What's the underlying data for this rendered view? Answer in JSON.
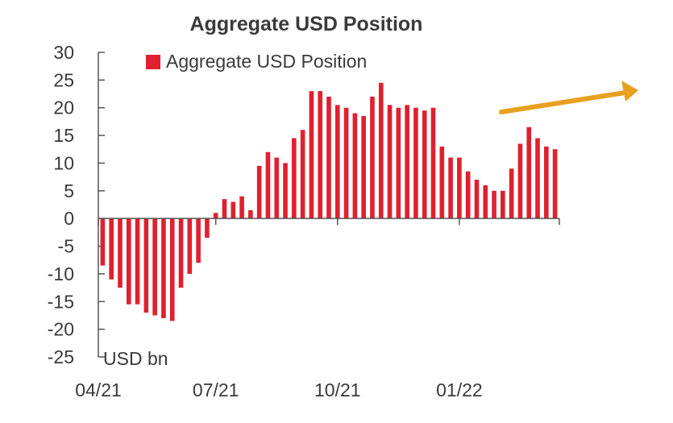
{
  "chart_data": {
    "type": "bar",
    "title": "Aggregate USD Position",
    "unit_label": "USD bn",
    "ylim": [
      -25,
      30
    ],
    "yticks": [
      30,
      25,
      20,
      15,
      10,
      5,
      0,
      -5,
      -10,
      -15,
      -20,
      -25
    ],
    "xtick_labels": [
      "04/21",
      "07/21",
      "10/21",
      "01/22"
    ],
    "xtick_positions": [
      0,
      13.5,
      27.5,
      41.5
    ],
    "legend_position": "top",
    "grid": false,
    "colors": {
      "bar": "#e0202e",
      "annotation_arrow": "#e8a020",
      "axis": "#555555"
    },
    "series": [
      {
        "name": "Aggregate USD Position",
        "values": [
          -8.5,
          -11,
          -12.5,
          -15.5,
          -15.5,
          -17,
          -17.5,
          -18,
          -18.5,
          -12.5,
          -10,
          -8,
          -3.5,
          1,
          3.5,
          3,
          4,
          1.5,
          9.5,
          12,
          11,
          10,
          14.5,
          16,
          23,
          23,
          22,
          20.5,
          20,
          19,
          18.5,
          22,
          24.5,
          20.5,
          20,
          20.5,
          20,
          19.5,
          20,
          13,
          11,
          11,
          8.5,
          7,
          6,
          5,
          5,
          9,
          13.5,
          16.5,
          14.5,
          13,
          12.5
        ]
      }
    ]
  }
}
